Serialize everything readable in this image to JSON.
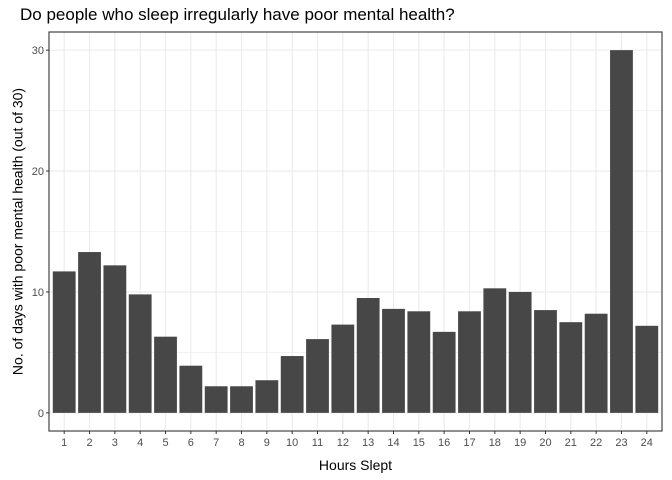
{
  "chart_data": {
    "type": "bar",
    "title": "Do people who sleep irregularly have poor mental health?",
    "xlabel": "Hours Slept",
    "ylabel": "No. of days with poor mental health (out of 30)",
    "categories": [
      "1",
      "2",
      "3",
      "4",
      "5",
      "6",
      "7",
      "8",
      "9",
      "10",
      "11",
      "12",
      "13",
      "14",
      "15",
      "16",
      "17",
      "18",
      "19",
      "20",
      "21",
      "22",
      "23",
      "24"
    ],
    "values": [
      11.7,
      13.3,
      12.2,
      9.8,
      6.3,
      3.9,
      2.2,
      2.2,
      2.7,
      4.7,
      6.1,
      7.3,
      9.5,
      8.6,
      8.4,
      6.7,
      8.4,
      10.3,
      10.0,
      8.5,
      7.5,
      8.2,
      30.0,
      7.2
    ],
    "y_ticks": [
      "0",
      "10",
      "20",
      "30"
    ],
    "ylim": [
      -1.5,
      31.5
    ],
    "grid": true,
    "bar_color": "#474747",
    "panel_border_color": "#333333",
    "grid_color": "#ebebeb"
  }
}
